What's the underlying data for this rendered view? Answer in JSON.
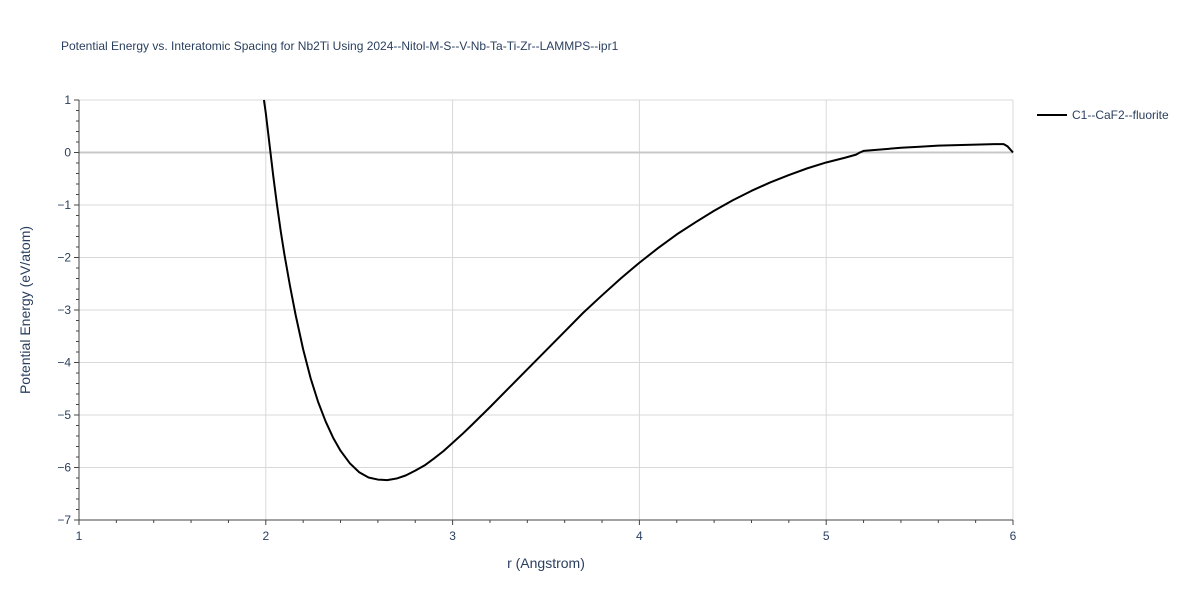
{
  "chart_data": {
    "type": "line",
    "title": "Potential Energy vs. Interatomic Spacing for Nb2Ti Using 2024--Nitol-M-S--V-Nb-Ta-Ti-Zr--LAMMPS--ipr1",
    "xlabel": "r (Angstrom)",
    "ylabel": "Potential Energy (eV/atom)",
    "xlim": [
      1,
      6
    ],
    "ylim": [
      -7,
      1
    ],
    "x_ticks": [
      "1",
      "2",
      "3",
      "4",
      "5",
      "6"
    ],
    "y_ticks": [
      "1",
      "0",
      "−1",
      "−2",
      "−3",
      "−4",
      "−5",
      "−6",
      "−7"
    ],
    "grid": true,
    "legend_position": "top-right-outside",
    "series": [
      {
        "name": "C1--CaF2--fluorite",
        "color": "#000000",
        "x": [
          1.99,
          2.0,
          2.02,
          2.04,
          2.06,
          2.08,
          2.1,
          2.13,
          2.16,
          2.2,
          2.24,
          2.28,
          2.32,
          2.36,
          2.4,
          2.45,
          2.5,
          2.55,
          2.6,
          2.65,
          2.7,
          2.75,
          2.8,
          2.85,
          2.9,
          2.95,
          3.0,
          3.05,
          3.1,
          3.2,
          3.3,
          3.4,
          3.5,
          3.6,
          3.7,
          3.8,
          3.9,
          4.0,
          4.1,
          4.2,
          4.3,
          4.4,
          4.5,
          4.6,
          4.7,
          4.8,
          4.9,
          5.0,
          5.1,
          5.16,
          5.18,
          5.2,
          5.3,
          5.4,
          5.5,
          5.6,
          5.7,
          5.8,
          5.9,
          5.95,
          5.97,
          6.0
        ],
        "y": [
          1.0,
          0.75,
          0.15,
          -0.45,
          -1.0,
          -1.5,
          -1.95,
          -2.55,
          -3.1,
          -3.75,
          -4.3,
          -4.75,
          -5.12,
          -5.43,
          -5.68,
          -5.92,
          -6.09,
          -6.19,
          -6.23,
          -6.24,
          -6.21,
          -6.15,
          -6.06,
          -5.96,
          -5.83,
          -5.69,
          -5.53,
          -5.37,
          -5.2,
          -4.85,
          -4.49,
          -4.13,
          -3.77,
          -3.41,
          -3.05,
          -2.72,
          -2.4,
          -2.1,
          -1.82,
          -1.56,
          -1.33,
          -1.11,
          -0.91,
          -0.73,
          -0.57,
          -0.43,
          -0.3,
          -0.19,
          -0.1,
          -0.04,
          0.0,
          0.03,
          0.06,
          0.09,
          0.11,
          0.13,
          0.14,
          0.15,
          0.16,
          0.16,
          0.12,
          0.0
        ]
      }
    ]
  }
}
